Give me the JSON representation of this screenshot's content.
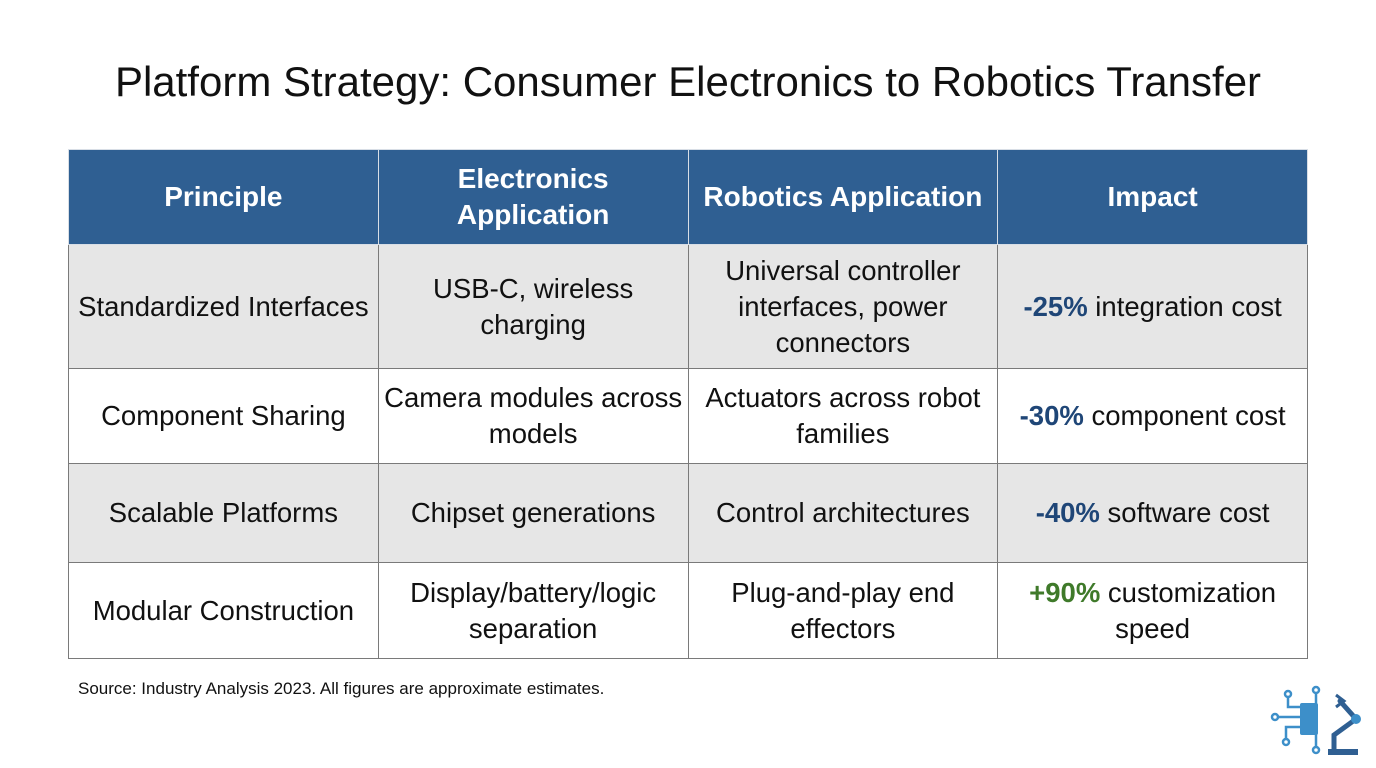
{
  "title": "Platform Strategy: Consumer Electronics to Robotics Transfer",
  "table": {
    "header": [
      "Principle",
      "Electronics Application",
      "Robotics Application",
      "Impact"
    ],
    "rows": [
      [
        "Standardized Interfaces",
        "USB-C, wireless charging",
        "Universal controller interfaces, power connectors",
        {
          "figure": "-25%",
          "text": "integration cost"
        }
      ],
      [
        "Component Sharing",
        "Camera modules across models",
        "Actuators across robot families",
        {
          "figure": "-30%",
          "text": "component cost"
        }
      ],
      [
        "Scalable Platforms",
        "Chipset generations",
        "Control architectures",
        {
          "figure": "-40%",
          "text": "software cost"
        }
      ],
      [
        "Modular Construction",
        "Display/battery/logic separation",
        "Plug-and-play end effectors",
        {
          "figure": "+90%",
          "text": "customization speed"
        }
      ]
    ]
  },
  "source": "Source: Industry Analysis 2023. All figures are approximate estimates."
}
